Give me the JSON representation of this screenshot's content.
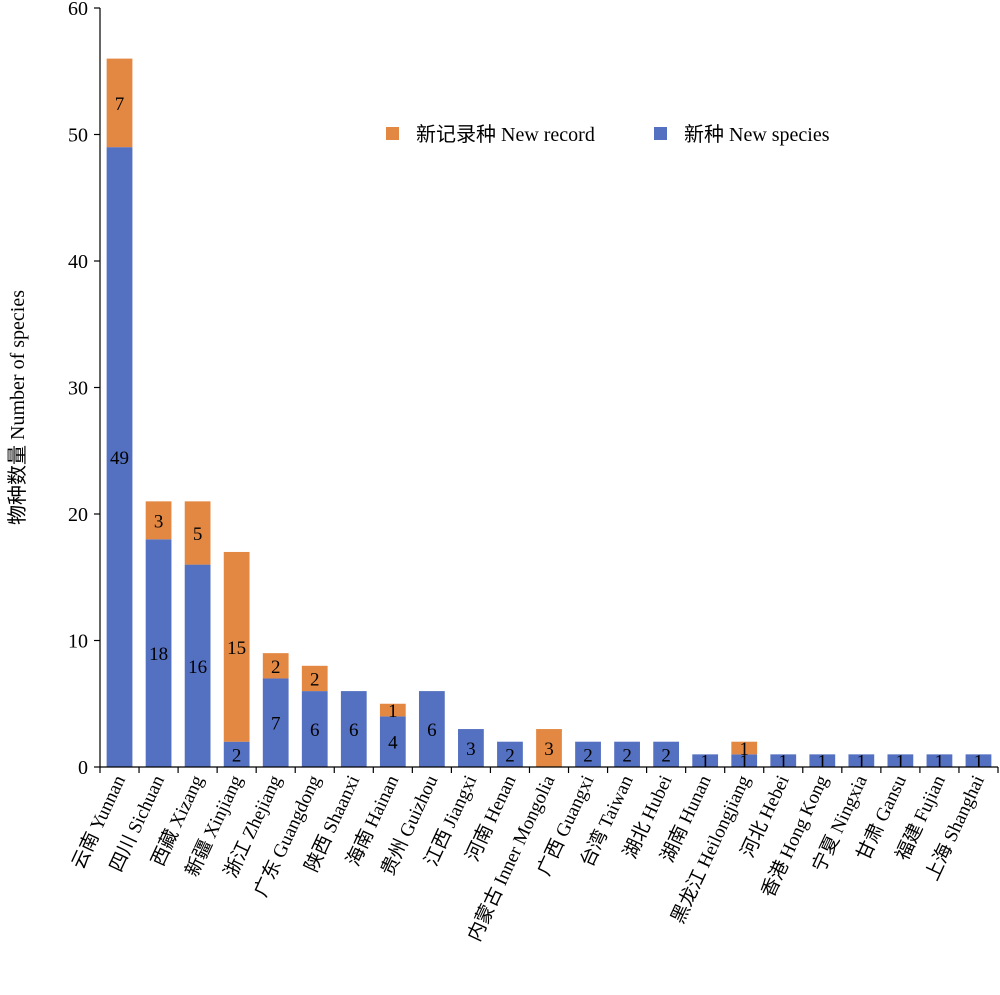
{
  "chart_data": {
    "type": "bar",
    "stacked": true,
    "categories": [
      "云南 Yunnan",
      "四川 Sichuan",
      "西藏 Xizang",
      "新疆 Xinjiang",
      "浙江 Zhejiang",
      "广东 Guangdong",
      "陕西 Shaanxi",
      "海南 Hainan",
      "贵州 Guizhou",
      "江西 Jiangxi",
      "河南 Henan",
      "内蒙古 Inner Mongolia",
      "广西 Guangxi",
      "台湾 Taiwan",
      "湖北 Hubei",
      "湖南 Hunan",
      "黑龙江 Heilongjiang",
      "河北 Hebei",
      "香港 Hong Kong",
      "宁夏 Ningxia",
      "甘肃 Gansu",
      "福建 Fujian",
      "上海 Shanghai"
    ],
    "series": [
      {
        "name": "新种 New species",
        "color": "#5470C0",
        "values": [
          49,
          18,
          16,
          2,
          7,
          6,
          6,
          4,
          6,
          3,
          2,
          0,
          2,
          2,
          2,
          1,
          1,
          1,
          1,
          1,
          1,
          1,
          1
        ]
      },
      {
        "name": "新记录种 New record",
        "color": "#E38843",
        "values": [
          7,
          3,
          5,
          15,
          2,
          2,
          0,
          1,
          0,
          0,
          0,
          3,
          0,
          0,
          0,
          0,
          1,
          0,
          0,
          0,
          0,
          0,
          0
        ]
      }
    ],
    "title": "",
    "xlabel": "",
    "ylabel": "物种数量 Number of species",
    "ylim": [
      0,
      60
    ],
    "yticks": [
      0,
      10,
      20,
      30,
      40,
      50,
      60
    ],
    "grid": false,
    "legend_position": "top-right"
  }
}
